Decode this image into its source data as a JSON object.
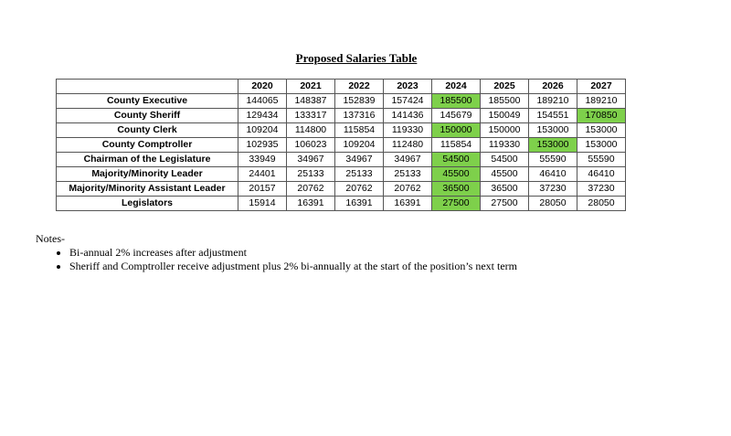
{
  "title": "Proposed Salaries Table",
  "table": {
    "years": [
      "2020",
      "2021",
      "2022",
      "2023",
      "2024",
      "2025",
      "2026",
      "2027"
    ],
    "rows": [
      {
        "label": "County Executive",
        "values": [
          "144065",
          "148387",
          "152839",
          "157424",
          "185500",
          "185500",
          "189210",
          "189210"
        ],
        "highlight": [
          4
        ]
      },
      {
        "label": "County Sheriff",
        "values": [
          "129434",
          "133317",
          "137316",
          "141436",
          "145679",
          "150049",
          "154551",
          "170850"
        ],
        "highlight": [
          7
        ]
      },
      {
        "label": "County Clerk",
        "values": [
          "109204",
          "114800",
          "115854",
          "119330",
          "150000",
          "150000",
          "153000",
          "153000"
        ],
        "highlight": [
          4
        ]
      },
      {
        "label": "County Comptroller",
        "values": [
          "102935",
          "106023",
          "109204",
          "112480",
          "115854",
          "119330",
          "153000",
          "153000"
        ],
        "highlight": [
          6
        ]
      },
      {
        "label": "Chairman of the Legislature",
        "values": [
          "33949",
          "34967",
          "34967",
          "34967",
          "54500",
          "54500",
          "55590",
          "55590"
        ],
        "highlight": [
          4
        ]
      },
      {
        "label": "Majority/Minority Leader",
        "values": [
          "24401",
          "25133",
          "25133",
          "25133",
          "45500",
          "45500",
          "46410",
          "46410"
        ],
        "highlight": [
          4
        ]
      },
      {
        "label": "Majority/Minority Assistant Leader",
        "values": [
          "20157",
          "20762",
          "20762",
          "20762",
          "36500",
          "36500",
          "37230",
          "37230"
        ],
        "highlight": [
          4
        ]
      },
      {
        "label": "Legislators",
        "values": [
          "15914",
          "16391",
          "16391",
          "16391",
          "27500",
          "27500",
          "28050",
          "28050"
        ],
        "highlight": [
          4
        ]
      }
    ],
    "highlight_color": "#7ed04b"
  },
  "notes": {
    "heading": "Notes-",
    "items": [
      "Bi-annual 2% increases after adjustment",
      "Sheriff and Comptroller receive adjustment plus 2% bi-annually at the start of the position’s next term"
    ]
  }
}
